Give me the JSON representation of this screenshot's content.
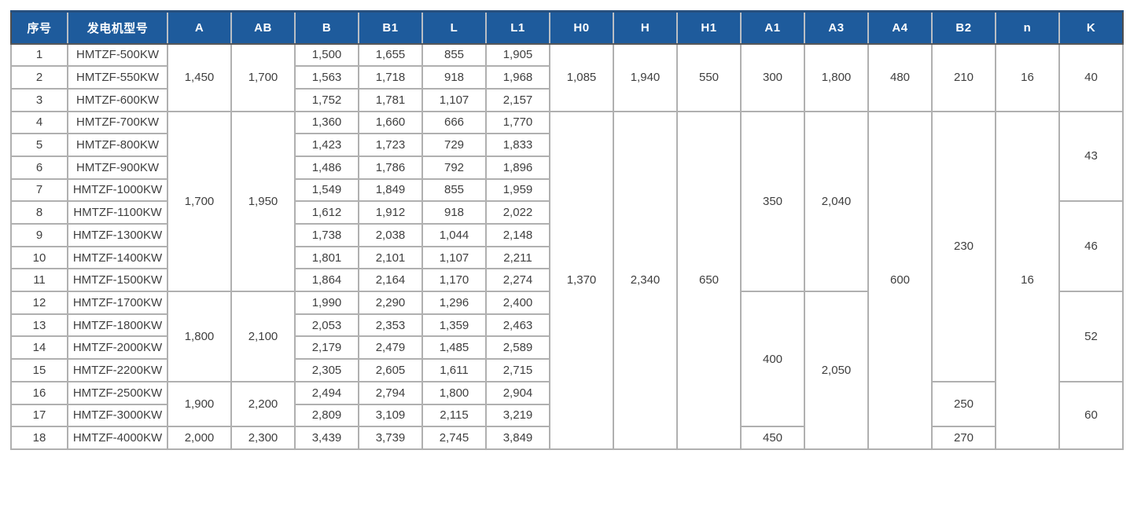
{
  "colors": {
    "header_bg": "#1e5b9c",
    "header_text": "#ffffff",
    "grid_line": "#b0b0b0",
    "outer_border": "#4e4e4e",
    "cell_text": "#3f3f3f"
  },
  "table": {
    "headers": [
      "序号",
      "发电机型号",
      "A",
      "AB",
      "B",
      "B1",
      "L",
      "L1",
      "H0",
      "H",
      "H1",
      "A1",
      "A3",
      "A4",
      "B2",
      "n",
      "K"
    ],
    "rows": [
      [
        {
          "v": "1"
        },
        {
          "v": "HMTZF-500KW"
        },
        {
          "v": "1,450",
          "rs": 3
        },
        {
          "v": "1,700",
          "rs": 3
        },
        {
          "v": "1,500"
        },
        {
          "v": "1,655"
        },
        {
          "v": "855"
        },
        {
          "v": "1,905"
        },
        {
          "v": "1,085",
          "rs": 3
        },
        {
          "v": "1,940",
          "rs": 3
        },
        {
          "v": "550",
          "rs": 3
        },
        {
          "v": "300",
          "rs": 3
        },
        {
          "v": "1,800",
          "rs": 3
        },
        {
          "v": "480",
          "rs": 3
        },
        {
          "v": "210",
          "rs": 3
        },
        {
          "v": "16",
          "rs": 3
        },
        {
          "v": "40",
          "rs": 3
        }
      ],
      [
        {
          "v": "2"
        },
        {
          "v": "HMTZF-550KW"
        },
        {
          "v": "1,563"
        },
        {
          "v": "1,718"
        },
        {
          "v": "918"
        },
        {
          "v": "1,968"
        }
      ],
      [
        {
          "v": "3"
        },
        {
          "v": "HMTZF-600KW"
        },
        {
          "v": "1,752"
        },
        {
          "v": "1,781"
        },
        {
          "v": "1,107"
        },
        {
          "v": "2,157"
        }
      ],
      [
        {
          "v": "4"
        },
        {
          "v": "HMTZF-700KW"
        },
        {
          "v": "1,700",
          "rs": 8
        },
        {
          "v": "1,950",
          "rs": 8
        },
        {
          "v": "1,360"
        },
        {
          "v": "1,660"
        },
        {
          "v": "666"
        },
        {
          "v": "1,770"
        },
        {
          "v": "1,370",
          "rs": 15
        },
        {
          "v": "2,340",
          "rs": 15
        },
        {
          "v": "650",
          "rs": 15
        },
        {
          "v": "350",
          "rs": 8
        },
        {
          "v": "2,040",
          "rs": 8
        },
        {
          "v": "600",
          "rs": 15
        },
        {
          "v": "230",
          "rs": 12
        },
        {
          "v": "16",
          "rs": 15
        },
        {
          "v": "43",
          "rs": 4
        }
      ],
      [
        {
          "v": "5"
        },
        {
          "v": "HMTZF-800KW"
        },
        {
          "v": "1,423"
        },
        {
          "v": "1,723"
        },
        {
          "v": "729"
        },
        {
          "v": "1,833"
        }
      ],
      [
        {
          "v": "6"
        },
        {
          "v": "HMTZF-900KW"
        },
        {
          "v": "1,486"
        },
        {
          "v": "1,786"
        },
        {
          "v": "792"
        },
        {
          "v": "1,896"
        }
      ],
      [
        {
          "v": "7"
        },
        {
          "v": "HMTZF-1000KW"
        },
        {
          "v": "1,549"
        },
        {
          "v": "1,849"
        },
        {
          "v": "855"
        },
        {
          "v": "1,959"
        }
      ],
      [
        {
          "v": "8"
        },
        {
          "v": "HMTZF-1100KW"
        },
        {
          "v": "1,612"
        },
        {
          "v": "1,912"
        },
        {
          "v": "918"
        },
        {
          "v": "2,022"
        },
        {
          "v": "46",
          "rs": 4
        }
      ],
      [
        {
          "v": "9"
        },
        {
          "v": "HMTZF-1300KW"
        },
        {
          "v": "1,738"
        },
        {
          "v": "2,038"
        },
        {
          "v": "1,044"
        },
        {
          "v": "2,148"
        }
      ],
      [
        {
          "v": "10"
        },
        {
          "v": "HMTZF-1400KW"
        },
        {
          "v": "1,801"
        },
        {
          "v": "2,101"
        },
        {
          "v": "1,107"
        },
        {
          "v": "2,211"
        }
      ],
      [
        {
          "v": "11"
        },
        {
          "v": "HMTZF-1500KW"
        },
        {
          "v": "1,864"
        },
        {
          "v": "2,164"
        },
        {
          "v": "1,170"
        },
        {
          "v": "2,274"
        }
      ],
      [
        {
          "v": "12"
        },
        {
          "v": "HMTZF-1700KW"
        },
        {
          "v": "1,800",
          "rs": 4
        },
        {
          "v": "2,100",
          "rs": 4
        },
        {
          "v": "1,990"
        },
        {
          "v": "2,290"
        },
        {
          "v": "1,296"
        },
        {
          "v": "2,400"
        },
        {
          "v": "400",
          "rs": 6
        },
        {
          "v": "2,050",
          "rs": 7
        },
        {
          "v": "52",
          "rs": 4
        }
      ],
      [
        {
          "v": "13"
        },
        {
          "v": "HMTZF-1800KW"
        },
        {
          "v": "2,053"
        },
        {
          "v": "2,353"
        },
        {
          "v": "1,359"
        },
        {
          "v": "2,463"
        }
      ],
      [
        {
          "v": "14"
        },
        {
          "v": "HMTZF-2000KW"
        },
        {
          "v": "2,179"
        },
        {
          "v": "2,479"
        },
        {
          "v": "1,485"
        },
        {
          "v": "2,589"
        }
      ],
      [
        {
          "v": "15"
        },
        {
          "v": "HMTZF-2200KW"
        },
        {
          "v": "2,305"
        },
        {
          "v": "2,605"
        },
        {
          "v": "1,611"
        },
        {
          "v": "2,715"
        }
      ],
      [
        {
          "v": "16"
        },
        {
          "v": "HMTZF-2500KW"
        },
        {
          "v": "1,900",
          "rs": 2
        },
        {
          "v": "2,200",
          "rs": 2
        },
        {
          "v": "2,494"
        },
        {
          "v": "2,794"
        },
        {
          "v": "1,800"
        },
        {
          "v": "2,904"
        },
        {
          "v": "250",
          "rs": 2
        },
        {
          "v": "60",
          "rs": 3
        }
      ],
      [
        {
          "v": "17"
        },
        {
          "v": "HMTZF-3000KW"
        },
        {
          "v": "2,809"
        },
        {
          "v": "3,109"
        },
        {
          "v": "2,115"
        },
        {
          "v": "3,219"
        }
      ],
      [
        {
          "v": "18"
        },
        {
          "v": "HMTZF-4000KW"
        },
        {
          "v": "2,000"
        },
        {
          "v": "2,300"
        },
        {
          "v": "3,439"
        },
        {
          "v": "3,739"
        },
        {
          "v": "2,745"
        },
        {
          "v": "3,849"
        },
        {
          "v": "450"
        },
        {
          "v": "270"
        }
      ]
    ]
  }
}
